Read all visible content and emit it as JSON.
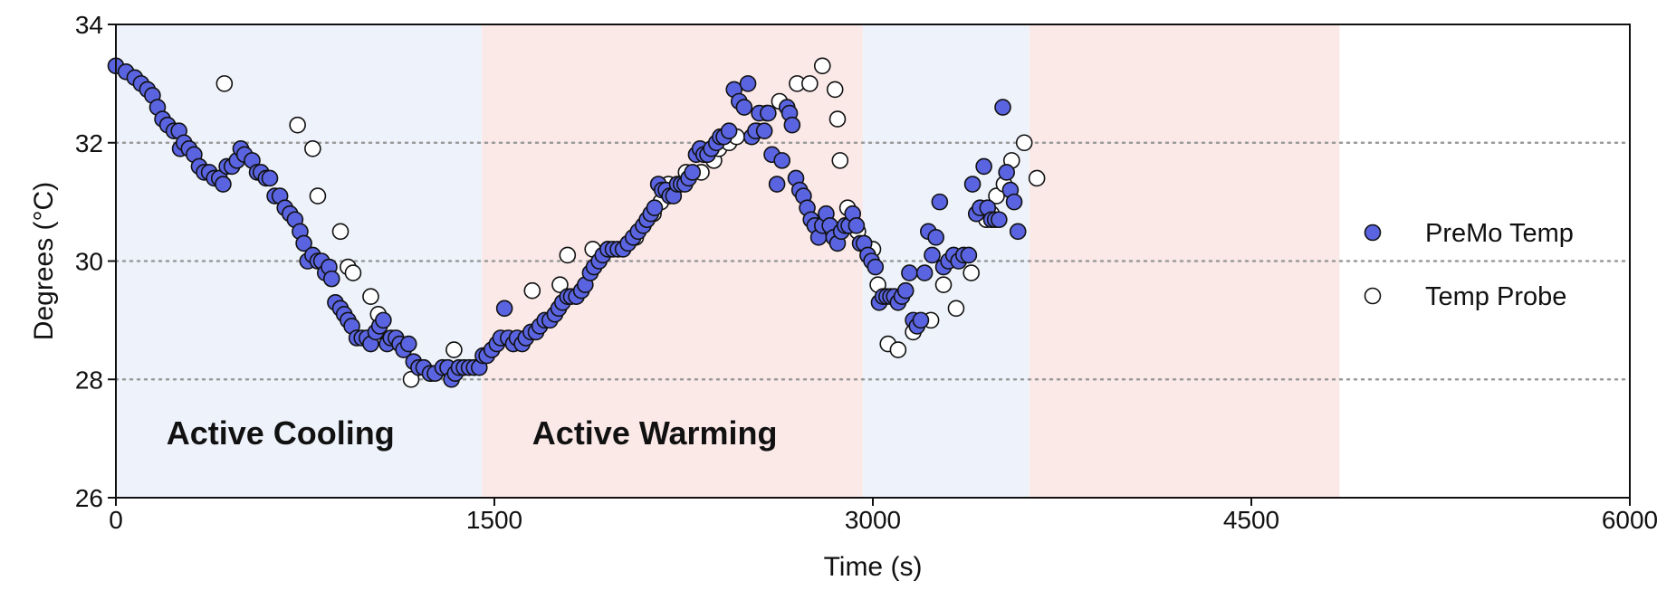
{
  "chart_data": {
    "type": "scatter",
    "xlabel": "Time (s)",
    "ylabel": "Degrees (°C)",
    "xlim": [
      0,
      6000
    ],
    "ylim": [
      26,
      34
    ],
    "x_ticks": [
      0,
      1500,
      3000,
      4500,
      6000
    ],
    "y_ticks": [
      26,
      28,
      30,
      32,
      34
    ],
    "x_tick_labels": [
      "0",
      "1500",
      "3000",
      "4500",
      "6000"
    ],
    "y_tick_labels": [
      "26",
      "28",
      "30",
      "32",
      "34"
    ],
    "grid": "horizontal dotted at 28, 30, 32",
    "legend_position": "right",
    "colors": {
      "premo_fill": "#5a64e0",
      "probe_fill": "#ffffff",
      "marker_stroke": "#111111",
      "cooling_band": "#eef3fb",
      "warming_band": "#fbe9e8",
      "grid": "#9a9a9a"
    },
    "bands": [
      {
        "type": "cooling",
        "x_start": 0,
        "x_end": 1450,
        "label": "Active Cooling",
        "label_x": 200,
        "label_y": 26.9
      },
      {
        "type": "warming",
        "x_start": 1450,
        "x_end": 2960,
        "label": "Active Warming",
        "label_x": 1650,
        "label_y": 26.9
      },
      {
        "type": "cooling",
        "x_start": 2960,
        "x_end": 3620,
        "label": ""
      },
      {
        "type": "warming",
        "x_start": 3620,
        "x_end": 4850,
        "label": ""
      }
    ],
    "series": [
      {
        "name": "PreMo Temp",
        "marker": "filled",
        "points": [
          [
            0,
            33.3
          ],
          [
            40,
            33.2
          ],
          [
            75,
            33.1
          ],
          [
            100,
            33.0
          ],
          [
            125,
            32.9
          ],
          [
            145,
            32.8
          ],
          [
            165,
            32.6
          ],
          [
            185,
            32.4
          ],
          [
            205,
            32.3
          ],
          [
            230,
            32.2
          ],
          [
            250,
            32.2
          ],
          [
            255,
            31.9
          ],
          [
            270,
            32.0
          ],
          [
            290,
            31.9
          ],
          [
            310,
            31.8
          ],
          [
            330,
            31.6
          ],
          [
            350,
            31.5
          ],
          [
            370,
            31.5
          ],
          [
            390,
            31.4
          ],
          [
            410,
            31.4
          ],
          [
            425,
            31.3
          ],
          [
            440,
            31.6
          ],
          [
            460,
            31.6
          ],
          [
            480,
            31.7
          ],
          [
            495,
            31.9
          ],
          [
            510,
            31.8
          ],
          [
            540,
            31.7
          ],
          [
            560,
            31.5
          ],
          [
            575,
            31.5
          ],
          [
            595,
            31.4
          ],
          [
            610,
            31.4
          ],
          [
            630,
            31.1
          ],
          [
            650,
            31.1
          ],
          [
            670,
            30.9
          ],
          [
            690,
            30.8
          ],
          [
            710,
            30.7
          ],
          [
            730,
            30.5
          ],
          [
            745,
            30.3
          ],
          [
            760,
            30.0
          ],
          [
            780,
            30.1
          ],
          [
            800,
            30.0
          ],
          [
            815,
            30.0
          ],
          [
            830,
            29.8
          ],
          [
            845,
            29.9
          ],
          [
            855,
            29.7
          ],
          [
            870,
            29.3
          ],
          [
            890,
            29.2
          ],
          [
            905,
            29.1
          ],
          [
            920,
            29.0
          ],
          [
            935,
            28.9
          ],
          [
            955,
            28.7
          ],
          [
            975,
            28.7
          ],
          [
            995,
            28.7
          ],
          [
            1010,
            28.6
          ],
          [
            1030,
            28.8
          ],
          [
            1045,
            28.9
          ],
          [
            1060,
            29.0
          ],
          [
            1075,
            28.6
          ],
          [
            1090,
            28.7
          ],
          [
            1110,
            28.7
          ],
          [
            1125,
            28.6
          ],
          [
            1140,
            28.5
          ],
          [
            1160,
            28.6
          ],
          [
            1180,
            28.3
          ],
          [
            1200,
            28.2
          ],
          [
            1220,
            28.2
          ],
          [
            1245,
            28.1
          ],
          [
            1265,
            28.1
          ],
          [
            1295,
            28.2
          ],
          [
            1315,
            28.2
          ],
          [
            1330,
            28.0
          ],
          [
            1345,
            28.1
          ],
          [
            1360,
            28.2
          ],
          [
            1380,
            28.2
          ],
          [
            1400,
            28.2
          ],
          [
            1420,
            28.2
          ],
          [
            1440,
            28.2
          ],
          [
            1455,
            28.4
          ],
          [
            1470,
            28.4
          ],
          [
            1490,
            28.5
          ],
          [
            1510,
            28.6
          ],
          [
            1525,
            28.7
          ],
          [
            1540,
            29.2
          ],
          [
            1555,
            28.7
          ],
          [
            1575,
            28.6
          ],
          [
            1590,
            28.7
          ],
          [
            1610,
            28.6
          ],
          [
            1625,
            28.7
          ],
          [
            1645,
            28.8
          ],
          [
            1665,
            28.8
          ],
          [
            1680,
            28.9
          ],
          [
            1700,
            29.0
          ],
          [
            1720,
            29.0
          ],
          [
            1740,
            29.1
          ],
          [
            1755,
            29.2
          ],
          [
            1770,
            29.3
          ],
          [
            1790,
            29.4
          ],
          [
            1805,
            29.4
          ],
          [
            1825,
            29.4
          ],
          [
            1845,
            29.5
          ],
          [
            1860,
            29.6
          ],
          [
            1880,
            29.8
          ],
          [
            1895,
            29.9
          ],
          [
            1915,
            30.0
          ],
          [
            1930,
            30.1
          ],
          [
            1950,
            30.2
          ],
          [
            1970,
            30.2
          ],
          [
            1990,
            30.2
          ],
          [
            2010,
            30.2
          ],
          [
            2030,
            30.3
          ],
          [
            2050,
            30.4
          ],
          [
            2070,
            30.5
          ],
          [
            2090,
            30.6
          ],
          [
            2105,
            30.7
          ],
          [
            2120,
            30.8
          ],
          [
            2135,
            30.9
          ],
          [
            2150,
            31.3
          ],
          [
            2165,
            31.2
          ],
          [
            2180,
            31.2
          ],
          [
            2195,
            31.1
          ],
          [
            2210,
            31.1
          ],
          [
            2225,
            31.3
          ],
          [
            2240,
            31.3
          ],
          [
            2255,
            31.3
          ],
          [
            2270,
            31.4
          ],
          [
            2285,
            31.5
          ],
          [
            2300,
            31.8
          ],
          [
            2315,
            31.9
          ],
          [
            2330,
            31.8
          ],
          [
            2345,
            31.8
          ],
          [
            2360,
            31.9
          ],
          [
            2380,
            32.0
          ],
          [
            2395,
            32.1
          ],
          [
            2410,
            32.1
          ],
          [
            2430,
            32.2
          ],
          [
            2450,
            32.9
          ],
          [
            2470,
            32.7
          ],
          [
            2490,
            32.6
          ],
          [
            2505,
            33.0
          ],
          [
            2520,
            32.1
          ],
          [
            2535,
            32.2
          ],
          [
            2550,
            32.5
          ],
          [
            2570,
            32.2
          ],
          [
            2585,
            32.5
          ],
          [
            2600,
            31.8
          ],
          [
            2620,
            31.3
          ],
          [
            2640,
            31.7
          ],
          [
            2660,
            32.6
          ],
          [
            2670,
            32.5
          ],
          [
            2680,
            32.3
          ],
          [
            2695,
            31.4
          ],
          [
            2710,
            31.2
          ],
          [
            2725,
            31.1
          ],
          [
            2740,
            30.9
          ],
          [
            2755,
            30.7
          ],
          [
            2770,
            30.6
          ],
          [
            2785,
            30.4
          ],
          [
            2800,
            30.6
          ],
          [
            2815,
            30.8
          ],
          [
            2830,
            30.6
          ],
          [
            2845,
            30.4
          ],
          [
            2860,
            30.3
          ],
          [
            2875,
            30.5
          ],
          [
            2890,
            30.6
          ],
          [
            2905,
            30.6
          ],
          [
            2920,
            30.8
          ],
          [
            2935,
            30.6
          ],
          [
            2950,
            30.3
          ],
          [
            2965,
            30.3
          ],
          [
            2980,
            30.1
          ],
          [
            2995,
            30.0
          ],
          [
            3010,
            29.9
          ],
          [
            3025,
            29.3
          ],
          [
            3040,
            29.4
          ],
          [
            3055,
            29.4
          ],
          [
            3070,
            29.4
          ],
          [
            3085,
            29.4
          ],
          [
            3100,
            29.3
          ],
          [
            3115,
            29.4
          ],
          [
            3130,
            29.5
          ],
          [
            3145,
            29.8
          ],
          [
            3160,
            29.0
          ],
          [
            3175,
            28.9
          ],
          [
            3190,
            29.0
          ],
          [
            3205,
            29.8
          ],
          [
            3220,
            30.5
          ],
          [
            3235,
            30.1
          ],
          [
            3250,
            30.4
          ],
          [
            3265,
            31.0
          ],
          [
            3280,
            29.9
          ],
          [
            3300,
            30.0
          ],
          [
            3320,
            30.1
          ],
          [
            3340,
            30.0
          ],
          [
            3360,
            30.1
          ],
          [
            3380,
            30.1
          ],
          [
            3395,
            31.3
          ],
          [
            3410,
            30.8
          ],
          [
            3425,
            30.9
          ],
          [
            3440,
            31.6
          ],
          [
            3455,
            30.9
          ],
          [
            3470,
            30.7
          ],
          [
            3485,
            30.7
          ],
          [
            3500,
            30.7
          ],
          [
            3515,
            32.6
          ],
          [
            3530,
            31.5
          ],
          [
            3545,
            31.2
          ],
          [
            3560,
            31.0
          ],
          [
            3575,
            30.5
          ]
        ]
      },
      {
        "name": "Temp Probe",
        "marker": "open",
        "points": [
          [
            430,
            33.0
          ],
          [
            720,
            32.3
          ],
          [
            780,
            31.9
          ],
          [
            800,
            31.1
          ],
          [
            890,
            30.5
          ],
          [
            920,
            29.9
          ],
          [
            940,
            29.8
          ],
          [
            1010,
            29.4
          ],
          [
            1040,
            29.1
          ],
          [
            1170,
            28.0
          ],
          [
            1250,
            28.1
          ],
          [
            1340,
            28.5
          ],
          [
            1650,
            29.5
          ],
          [
            1760,
            29.6
          ],
          [
            1790,
            30.1
          ],
          [
            1890,
            30.2
          ],
          [
            1950,
            30.2
          ],
          [
            2060,
            30.4
          ],
          [
            2130,
            30.8
          ],
          [
            2160,
            31.0
          ],
          [
            2170,
            31.2
          ],
          [
            2190,
            31.3
          ],
          [
            2260,
            31.5
          ],
          [
            2320,
            31.5
          ],
          [
            2370,
            31.7
          ],
          [
            2390,
            31.9
          ],
          [
            2430,
            32.0
          ],
          [
            2460,
            32.1
          ],
          [
            2540,
            32.2
          ],
          [
            2580,
            32.5
          ],
          [
            2630,
            32.7
          ],
          [
            2700,
            33.0
          ],
          [
            2750,
            33.0
          ],
          [
            2800,
            33.3
          ],
          [
            2850,
            32.9
          ],
          [
            2860,
            32.4
          ],
          [
            2870,
            31.7
          ],
          [
            2900,
            30.9
          ],
          [
            2940,
            30.5
          ],
          [
            3000,
            30.2
          ],
          [
            3020,
            29.6
          ],
          [
            3060,
            28.6
          ],
          [
            3100,
            28.5
          ],
          [
            3160,
            28.8
          ],
          [
            3230,
            29.0
          ],
          [
            3280,
            29.6
          ],
          [
            3330,
            29.2
          ],
          [
            3390,
            29.8
          ],
          [
            3450,
            30.7
          ],
          [
            3470,
            30.8
          ],
          [
            3490,
            31.1
          ],
          [
            3520,
            31.3
          ],
          [
            3550,
            31.7
          ],
          [
            3600,
            32.0
          ],
          [
            3650,
            31.4
          ]
        ]
      }
    ],
    "legend": [
      {
        "label": "PreMo Temp",
        "marker": "filled"
      },
      {
        "label": "Temp Probe",
        "marker": "open"
      }
    ]
  }
}
